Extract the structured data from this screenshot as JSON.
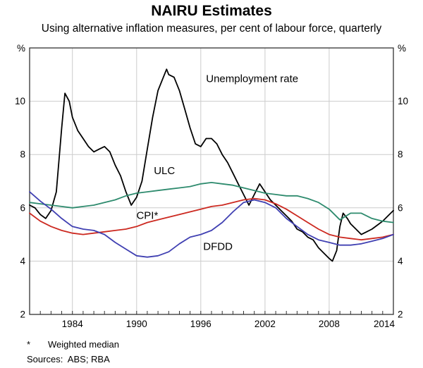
{
  "chart": {
    "title": "NAIRU Estimates",
    "subtitle": "Using alternative inflation measures, per cent of labour force, quarterly",
    "footnote_marker": "*",
    "footnote_text": "Weighted median",
    "sources": "Sources:  ABS; RBA"
  },
  "chart_data": {
    "type": "line",
    "title": "NAIRU Estimates",
    "subtitle": "Using alternative inflation measures, per cent of labour force, quarterly",
    "xlabel": "",
    "ylabel": "%",
    "unit_shown_both_sides": true,
    "ylim": [
      2,
      12
    ],
    "xlim": [
      1980,
      2014
    ],
    "yticks": [
      2,
      4,
      6,
      8,
      10
    ],
    "xticks": [
      1984,
      1990,
      1996,
      2002,
      2008,
      2014
    ],
    "grid": true,
    "legend_position": "inline-annotations",
    "footnote": "* Weighted median",
    "sources": "Sources: ABS; RBA",
    "series": [
      {
        "id": "unemployment-rate",
        "name": "Unemployment rate",
        "color": "#000000",
        "x": [
          1980,
          1980.5,
          1981,
          1981.5,
          1982,
          1982.5,
          1983,
          1983.3,
          1983.7,
          1984,
          1984.5,
          1985,
          1985.5,
          1986,
          1986.5,
          1987,
          1987.5,
          1988,
          1988.5,
          1989,
          1989.5,
          1990,
          1990.5,
          1991,
          1991.5,
          1992,
          1992.5,
          1992.8,
          1993,
          1993.5,
          1994,
          1994.5,
          1995,
          1995.5,
          1996,
          1996.5,
          1997,
          1997.5,
          1998,
          1998.5,
          1999,
          1999.5,
          2000,
          2000.5,
          2001,
          2001.5,
          2002,
          2002.5,
          2003,
          2003.5,
          2004,
          2004.5,
          2005,
          2005.5,
          2006,
          2006.5,
          2007,
          2007.5,
          2008,
          2008.3,
          2008.7,
          2009,
          2009.3,
          2009.7,
          2010,
          2010.5,
          2011,
          2011.5,
          2012,
          2012.5,
          2013,
          2013.5,
          2014
        ],
        "values": [
          6.1,
          6.0,
          5.75,
          5.6,
          5.9,
          6.6,
          9.0,
          10.3,
          10.0,
          9.4,
          8.9,
          8.6,
          8.3,
          8.1,
          8.2,
          8.3,
          8.1,
          7.6,
          7.2,
          6.6,
          6.1,
          6.4,
          7.0,
          8.2,
          9.4,
          10.4,
          10.9,
          11.2,
          11.0,
          10.9,
          10.4,
          9.7,
          9.0,
          8.4,
          8.3,
          8.6,
          8.6,
          8.4,
          8.0,
          7.7,
          7.3,
          6.9,
          6.5,
          6.1,
          6.5,
          6.9,
          6.6,
          6.3,
          6.1,
          5.9,
          5.7,
          5.5,
          5.2,
          5.1,
          4.9,
          4.8,
          4.5,
          4.3,
          4.1,
          4.0,
          4.4,
          5.3,
          5.8,
          5.6,
          5.4,
          5.2,
          5.0,
          5.1,
          5.2,
          5.35,
          5.5,
          5.7,
          5.9
        ]
      },
      {
        "id": "ulc",
        "name": "ULC",
        "color": "#2e8b6e",
        "x": [
          1980,
          1981,
          1982,
          1983,
          1984,
          1985,
          1986,
          1987,
          1988,
          1989,
          1990,
          1991,
          1992,
          1993,
          1994,
          1995,
          1996,
          1997,
          1998,
          1999,
          2000,
          2001,
          2002,
          2003,
          2004,
          2005,
          2006,
          2007,
          2008,
          2009,
          2010,
          2011,
          2012,
          2013,
          2014
        ],
        "values": [
          6.2,
          6.15,
          6.1,
          6.05,
          6.0,
          6.05,
          6.1,
          6.2,
          6.3,
          6.45,
          6.55,
          6.6,
          6.65,
          6.7,
          6.75,
          6.8,
          6.9,
          6.95,
          6.9,
          6.85,
          6.75,
          6.65,
          6.55,
          6.5,
          6.45,
          6.45,
          6.35,
          6.2,
          5.95,
          5.55,
          5.8,
          5.8,
          5.6,
          5.5,
          5.45
        ]
      },
      {
        "id": "cpi",
        "name": "CPI*",
        "color": "#cc2920",
        "x": [
          1980,
          1981,
          1982,
          1983,
          1984,
          1985,
          1986,
          1987,
          1988,
          1989,
          1990,
          1991,
          1992,
          1993,
          1994,
          1995,
          1996,
          1997,
          1998,
          1999,
          2000,
          2001,
          2002,
          2003,
          2004,
          2005,
          2006,
          2007,
          2008,
          2009,
          2010,
          2011,
          2012,
          2013,
          2014
        ],
        "values": [
          5.8,
          5.5,
          5.3,
          5.15,
          5.05,
          5.0,
          5.05,
          5.1,
          5.15,
          5.2,
          5.3,
          5.45,
          5.55,
          5.65,
          5.75,
          5.85,
          5.95,
          6.05,
          6.1,
          6.2,
          6.3,
          6.35,
          6.3,
          6.15,
          5.95,
          5.7,
          5.45,
          5.2,
          5.0,
          4.9,
          4.85,
          4.8,
          4.85,
          4.9,
          5.0
        ]
      },
      {
        "id": "dfdd",
        "name": "DFDD",
        "color": "#4040b2",
        "x": [
          1980,
          1981,
          1982,
          1983,
          1984,
          1985,
          1986,
          1987,
          1988,
          1989,
          1990,
          1991,
          1992,
          1993,
          1994,
          1995,
          1996,
          1997,
          1998,
          1999,
          2000,
          2001,
          2002,
          2003,
          2004,
          2005,
          2006,
          2007,
          2008,
          2009,
          2010,
          2011,
          2012,
          2013,
          2014
        ],
        "values": [
          6.6,
          6.25,
          5.95,
          5.6,
          5.3,
          5.2,
          5.15,
          5.0,
          4.7,
          4.45,
          4.2,
          4.15,
          4.2,
          4.35,
          4.65,
          4.9,
          5.0,
          5.15,
          5.45,
          5.85,
          6.2,
          6.3,
          6.2,
          6.0,
          5.6,
          5.3,
          5.0,
          4.8,
          4.7,
          4.6,
          4.6,
          4.65,
          4.75,
          4.85,
          5.0
        ]
      }
    ],
    "annotations": [
      {
        "id": "unemployment-rate",
        "text": "Unemployment rate",
        "x": 2000.8,
        "y": 10.85,
        "color": "#000000"
      },
      {
        "id": "ulc",
        "text": "ULC",
        "x": 1992.6,
        "y": 7.4,
        "color": "#2e8b6e"
      },
      {
        "id": "cpi",
        "text": "CPI*",
        "x": 1991.0,
        "y": 5.72,
        "color": "#cc2920"
      },
      {
        "id": "dfdd",
        "text": "DFDD",
        "x": 1997.6,
        "y": 4.55,
        "color": "#4040b2"
      }
    ]
  }
}
